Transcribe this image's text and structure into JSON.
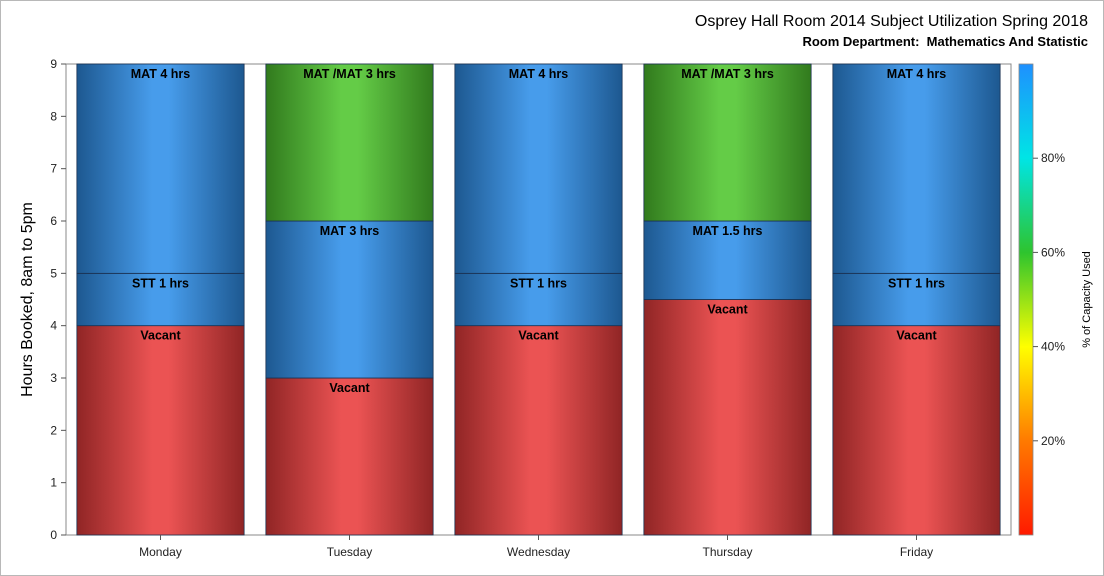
{
  "chart_data": {
    "type": "bar",
    "stacked": true,
    "title": "Osprey Hall Room 2014 Subject Utilization Spring 2018",
    "subtitle": "Room Department:  Mathematics And Statistic",
    "xlabel": "",
    "ylabel": "Hours Booked, 8am to 5pm",
    "ylim": [
      0,
      9
    ],
    "yticks": [
      "0",
      "1",
      "2",
      "3",
      "4",
      "5",
      "6",
      "7",
      "8",
      "9"
    ],
    "categories": [
      "Monday",
      "Tuesday",
      "Wednesday",
      "Thursday",
      "Friday"
    ],
    "stacks": [
      [
        {
          "label": "Vacant",
          "value": 4,
          "color": "#e83b3b"
        },
        {
          "label": "STT 1 hrs",
          "value": 1,
          "color": "#2e8ee8"
        },
        {
          "label": "MAT 4 hrs",
          "value": 4,
          "color": "#2e8ee8"
        }
      ],
      [
        {
          "label": "Vacant",
          "value": 3,
          "color": "#e83b3b"
        },
        {
          "label": "MAT 3 hrs",
          "value": 3,
          "color": "#2e8ee8"
        },
        {
          "label": "MAT /MAT 3 hrs",
          "value": 3,
          "color": "#4fc52e"
        }
      ],
      [
        {
          "label": "Vacant",
          "value": 4,
          "color": "#e83b3b"
        },
        {
          "label": "STT 1 hrs",
          "value": 1,
          "color": "#2e8ee8"
        },
        {
          "label": "MAT 4 hrs",
          "value": 4,
          "color": "#2e8ee8"
        }
      ],
      [
        {
          "label": "Vacant",
          "value": 4.5,
          "color": "#e83b3b"
        },
        {
          "label": "MAT 1.5 hrs",
          "value": 1.5,
          "color": "#2e8ee8"
        },
        {
          "label": "MAT /MAT 3 hrs",
          "value": 3,
          "color": "#4fc52e"
        }
      ],
      [
        {
          "label": "Vacant",
          "value": 4,
          "color": "#e83b3b"
        },
        {
          "label": "STT 1 hrs",
          "value": 1,
          "color": "#2e8ee8"
        },
        {
          "label": "MAT 4 hrs",
          "value": 4,
          "color": "#2e8ee8"
        }
      ]
    ],
    "colorbar": {
      "label": "% of Capacity Used",
      "ticks": [
        "20%",
        "40%",
        "60%",
        "80%"
      ],
      "tick_values": [
        20,
        40,
        60,
        80
      ],
      "range": [
        0,
        100
      ],
      "colors": [
        "#ff1a00",
        "#ff7a00",
        "#ffff00",
        "#2ec42e",
        "#00e5e5",
        "#1e90ff"
      ]
    },
    "grid": false,
    "legend": "colorbar-right"
  }
}
